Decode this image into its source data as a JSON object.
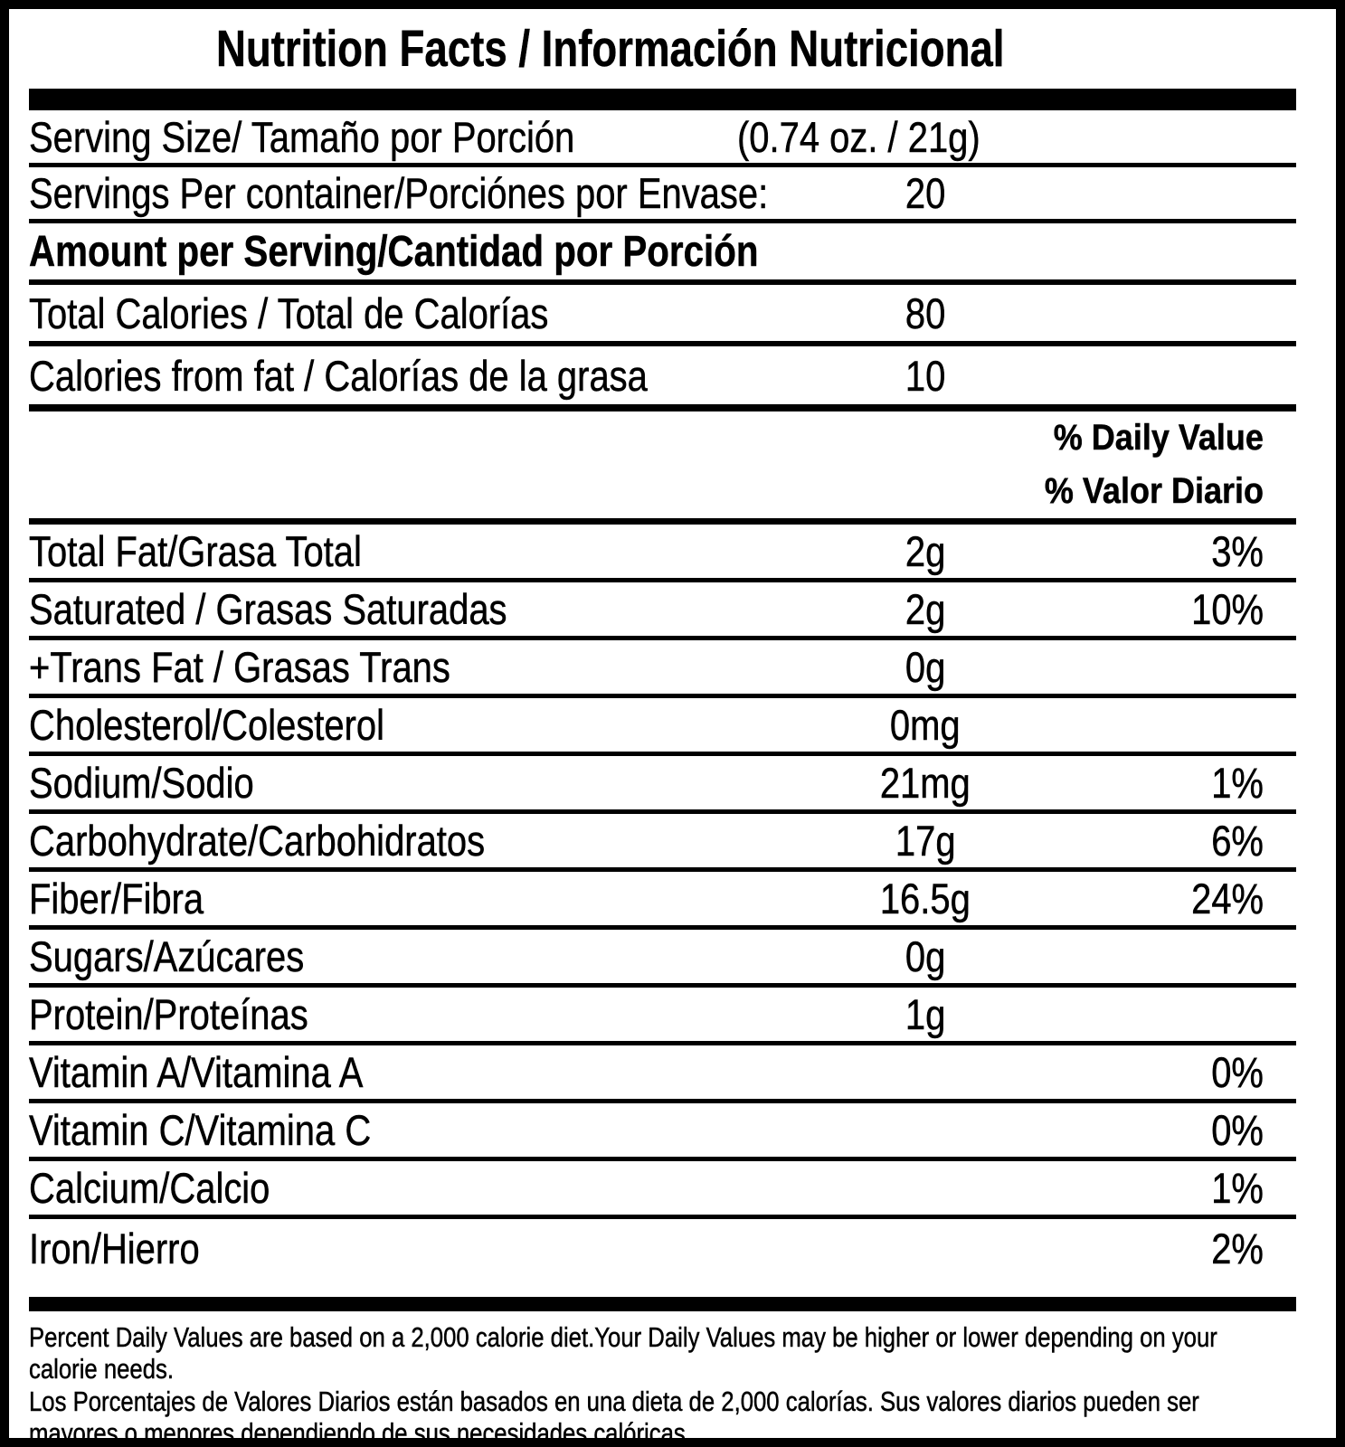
{
  "title": "Nutrition Facts / Información Nutricional",
  "serving": {
    "label": "Serving Size/ Tamaño por Porción",
    "value": "(0.74 oz. / 21g)"
  },
  "servings_per_container": {
    "label": "Servings Per container/Porciónes por Envase:",
    "value": "20"
  },
  "amount_header": "Amount per Serving/Cantidad por Porción",
  "calories_rows": [
    {
      "label": "Total Calories / Total de Calorías",
      "value": "80"
    },
    {
      "label": "Calories from fat / Calorías de la grasa",
      "value": "10"
    }
  ],
  "daily_value_header": {
    "line1": "% Daily Value",
    "line2": "% Valor Diario"
  },
  "nutrients": [
    {
      "label": "Total Fat/Grasa Total",
      "amount": "2g",
      "dv": "3%"
    },
    {
      "label": "Saturated / Grasas Saturadas",
      "amount": "2g",
      "dv": "10%"
    },
    {
      "label": "+Trans Fat / Grasas Trans",
      "amount": "0g",
      "dv": ""
    },
    {
      "label": "Cholesterol/Colesterol",
      "amount": "0mg",
      "dv": ""
    },
    {
      "label": "Sodium/Sodio",
      "amount": "21mg",
      "dv": "1%"
    },
    {
      "label": "Carbohydrate/Carbohidratos",
      "amount": "17g",
      "dv": "6%"
    },
    {
      "label": "Fiber/Fibra",
      "amount": "16.5g",
      "dv": "24%"
    },
    {
      "label": "Sugars/Azúcares",
      "amount": "0g",
      "dv": ""
    },
    {
      "label": "Protein/Proteínas",
      "amount": "1g",
      "dv": ""
    },
    {
      "label": "Vitamin A/Vitamina A",
      "amount": "",
      "dv": "0%"
    },
    {
      "label": "Vitamin C/Vitamina C",
      "amount": "",
      "dv": "0%"
    },
    {
      "label": "Calcium/Calcio",
      "amount": "",
      "dv": "1%"
    },
    {
      "label": "Iron/Hierro",
      "amount": "",
      "dv": "2%"
    }
  ],
  "footnotes": {
    "english": "Percent Daily Values are based on a 2,000 calorie diet.Your Daily Values may be higher or lower depending on your\ncalorie needs.",
    "spanish": "Los Porcentajes de Valores Diarios están basados en una dieta de 2,000 calorías. Sus valores diarios pueden ser\nmayores o menores dependiendo de sus necesidades calóricas"
  },
  "colors": {
    "text": "#000000",
    "background": "#ffffff",
    "border": "#000000"
  }
}
